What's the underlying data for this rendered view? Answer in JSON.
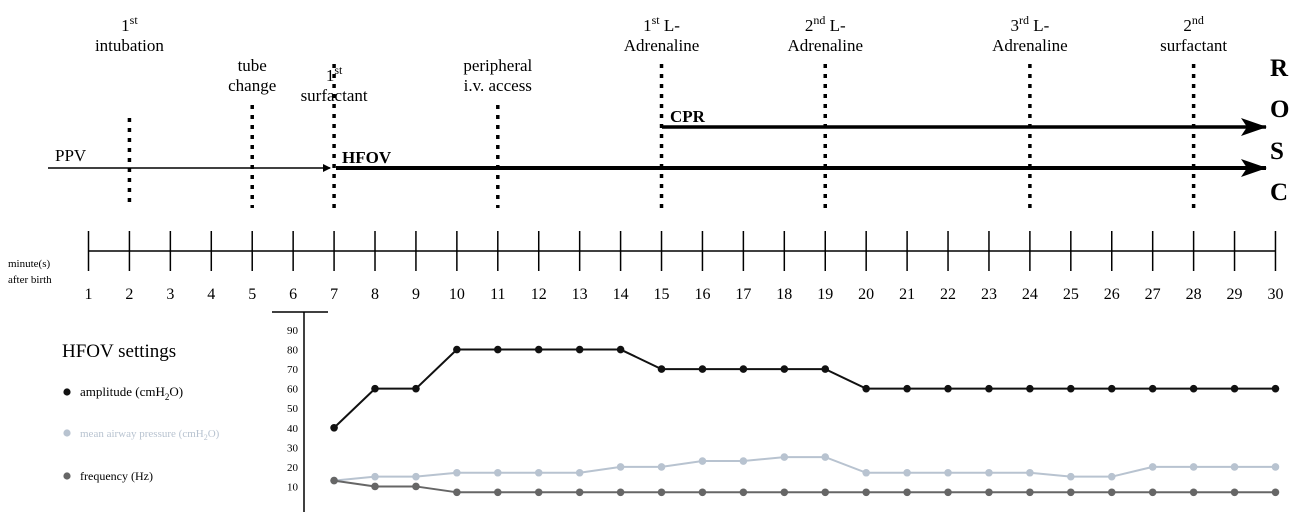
{
  "events": [
    {
      "minute": 2,
      "lines": [
        "1st",
        "intubation"
      ]
    },
    {
      "minute": 5,
      "lines": [
        "tube",
        "change"
      ]
    },
    {
      "minute": 7,
      "lines": [
        "1st",
        "surfactant"
      ]
    },
    {
      "minute": 11,
      "lines": [
        "peripheral",
        "i.v. access"
      ]
    },
    {
      "minute": 15,
      "lines": [
        "1st L-",
        "Adrenaline"
      ]
    },
    {
      "minute": 19,
      "lines": [
        "2nd L-",
        "Adrenaline"
      ]
    },
    {
      "minute": 24,
      "lines": [
        "3rd L-",
        "Adrenaline"
      ]
    },
    {
      "minute": 28,
      "lines": [
        "2nd",
        "surfactant"
      ]
    }
  ],
  "arrows": {
    "ppv": "PPV",
    "hfov": "HFOV",
    "cpr": "CPR",
    "hfov_start_minute": 7,
    "cpr_start_minute": 15
  },
  "rosc": [
    "R",
    "O",
    "S",
    "C"
  ],
  "timeline": {
    "axis_label": [
      "minute(s)",
      "after birth"
    ],
    "ticks": [
      1,
      2,
      3,
      4,
      5,
      6,
      7,
      8,
      9,
      10,
      11,
      12,
      13,
      14,
      15,
      16,
      17,
      18,
      19,
      20,
      21,
      22,
      23,
      24,
      25,
      26,
      27,
      28,
      29,
      30
    ]
  },
  "legend": {
    "title": "HFOV settings",
    "amplitude": "amplitude (cmH2O)",
    "map": "mean airway pressure  (cmH2O)",
    "frequency": "frequency (Hz)"
  },
  "chart_data": {
    "type": "line",
    "x": [
      7,
      8,
      9,
      10,
      11,
      12,
      13,
      14,
      15,
      16,
      17,
      18,
      19,
      20,
      21,
      22,
      23,
      24,
      25,
      26,
      27,
      28,
      29,
      30
    ],
    "series": [
      {
        "name": "amplitude (cmH2O)",
        "color": "#111111",
        "values": [
          40,
          60,
          60,
          80,
          80,
          80,
          80,
          80,
          70,
          70,
          70,
          70,
          70,
          60,
          60,
          60,
          60,
          60,
          60,
          60,
          60,
          60,
          60,
          60
        ]
      },
      {
        "name": "mean airway pressure  (cmH2O)",
        "color": "#b8c3d0",
        "values": [
          13,
          15,
          15,
          17,
          17,
          17,
          17,
          20,
          20,
          23,
          23,
          25,
          25,
          17,
          17,
          17,
          17,
          17,
          15,
          15,
          20,
          20,
          20,
          20
        ]
      },
      {
        "name": "frequency (Hz)",
        "color": "#666666",
        "values": [
          13,
          10,
          10,
          7,
          7,
          7,
          7,
          7,
          7,
          7,
          7,
          7,
          7,
          7,
          7,
          7,
          7,
          7,
          7,
          7,
          7,
          7,
          7,
          7
        ]
      }
    ],
    "yticks": [
      10,
      20,
      30,
      40,
      50,
      60,
      70,
      80,
      90
    ],
    "ylim": [
      0,
      90
    ]
  }
}
